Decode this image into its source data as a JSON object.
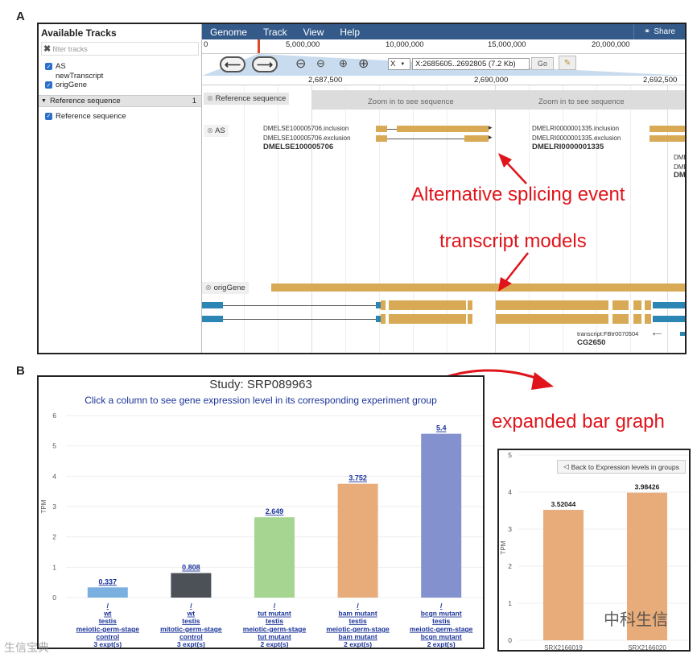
{
  "panel_a": {
    "letter": "A",
    "sidebar": {
      "title": "Available Tracks",
      "filter_placeholder": "filter tracks",
      "tracks": [
        {
          "label": "AS",
          "checked": true
        },
        {
          "label": "newTranscript",
          "checked": false
        },
        {
          "label": "origGene",
          "checked": true
        }
      ],
      "ref_header": "Reference sequence",
      "ref_count": "1",
      "ref_track": "Reference sequence"
    },
    "menu": [
      "Genome",
      "Track",
      "View",
      "Help"
    ],
    "share": "Share",
    "ruler": [
      "0",
      "5,000,000",
      "10,000,000",
      "15,000,000",
      "20,000,000"
    ],
    "chrom": "X",
    "location": "X:2685605..2692805 (7.2 Kb)",
    "go": "Go",
    "coords": [
      "2,687,500",
      "2,690,000",
      "2,692,500"
    ],
    "ref_label": "Reference sequence",
    "zoom_text": "Zoom in to see sequence",
    "as_label": "AS",
    "features": {
      "left_inclusion": "DMELSE100005706.inclusion",
      "left_exclusion": "DMELSE100005706.exclusion",
      "left_name": "DMELSE100005706",
      "right_inclusion": "DMELRI0000001335.inclusion",
      "right_exclusion": "DMELRI0000001335.exclusion",
      "right_name": "DMELRI0000001335",
      "edge_1": "DME",
      "edge_2": "DME",
      "edge_3": "DM"
    },
    "orig_label": "origGene",
    "transcript_label": "transcript:FBtr0070504",
    "gene_name": "CG2650",
    "annotations": {
      "splicing": "Alternative splicing event",
      "models": "transcript models"
    }
  },
  "panel_b": {
    "letter": "B",
    "expanded_label": "expanded bar graph"
  },
  "chart_data": [
    {
      "type": "bar",
      "title": "Study: SRP089963",
      "subtitle": "Click a column to see gene expression level in its corresponding experiment group",
      "ylabel": "TPM",
      "ylim": [
        0,
        6
      ],
      "yticks": [
        0,
        1,
        2,
        3,
        4,
        5,
        6
      ],
      "categories": [
        [
          "/",
          "wt",
          "testis",
          "meiotic-germ-stage",
          "control",
          "3 expt(s)"
        ],
        [
          "/",
          "wt",
          "testis",
          "mitotic-germ-stage",
          "control",
          "3 expt(s)"
        ],
        [
          "/",
          "tut mutant",
          "testis",
          "meiotic-germ-stage",
          "tut mutant",
          "2 expt(s)"
        ],
        [
          "/",
          "bam mutant",
          "testis",
          "meiotic-germ-stage",
          "bam mutant",
          "2 expt(s)"
        ],
        [
          "/",
          "bcgn mutant",
          "testis",
          "meiotic-germ-stage",
          "bcgn mutant",
          "2 expt(s)"
        ]
      ],
      "values": [
        0.337,
        0.808,
        2.649,
        3.752,
        5.4
      ],
      "value_labels": [
        "0.337",
        "0.808",
        "2.649",
        "3.752",
        "5.4"
      ],
      "colors": [
        "#7ab0e0",
        "#4c5158",
        "#a6d591",
        "#e8ab7a",
        "#8392cf"
      ]
    },
    {
      "type": "bar",
      "button": "Back to Expression levels in groups",
      "ylabel": "TPM",
      "ylim": [
        0,
        5
      ],
      "yticks": [
        0,
        1,
        2,
        3,
        4,
        5
      ],
      "categories": [
        "SRX2166019",
        "SRX2166020"
      ],
      "values": [
        3.52044,
        3.98426
      ],
      "value_labels": [
        "3.52044",
        "3.98426"
      ],
      "colors": [
        "#e8ab7a",
        "#e8ab7a"
      ]
    }
  ],
  "watermarks": {
    "right": "中科生信",
    "left": "生信宝典"
  }
}
